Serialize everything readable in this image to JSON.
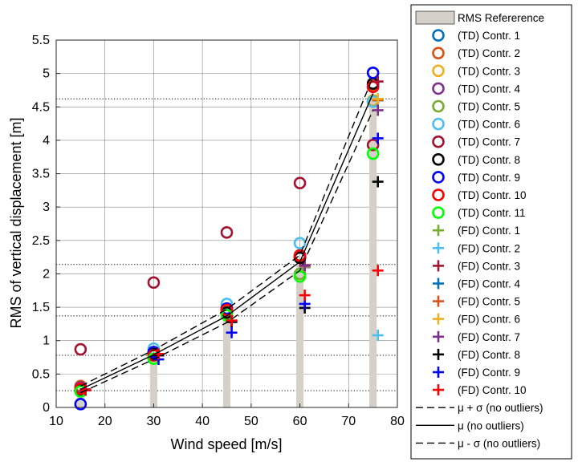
{
  "chart_data": {
    "type": "scatter",
    "xlabel": "Wind speed [m/s]",
    "ylabel": "RMS of vertical displacement [m]",
    "xlim": [
      10,
      80
    ],
    "ylim": [
      0,
      5.5
    ],
    "x_ticks": [
      "10",
      "20",
      "30",
      "40",
      "50",
      "60",
      "70",
      "80"
    ],
    "y_ticks": [
      "0",
      "0.5",
      "1",
      "1.5",
      "2",
      "2.5",
      "3",
      "3.5",
      "4",
      "4.5",
      "5",
      "5.5"
    ],
    "grid": true,
    "legend_position": "outside-right",
    "x": [
      15,
      30,
      45,
      60,
      75
    ],
    "reference": {
      "name": "RMS Refererence",
      "color": "#d6d1c8",
      "values": [
        0.25,
        0.78,
        1.37,
        2.14,
        4.62
      ]
    },
    "lines": [
      {
        "name": "μ + σ  (no outliers)",
        "style": "dashed",
        "values": [
          0.32,
          0.86,
          1.47,
          2.28,
          4.95
        ]
      },
      {
        "name": "μ (no outliers)",
        "style": "solid",
        "values": [
          0.27,
          0.79,
          1.37,
          2.18,
          4.7
        ]
      },
      {
        "name": "μ - σ  (no outliers)",
        "style": "dashed",
        "values": [
          0.22,
          0.72,
          1.27,
          2.05,
          4.45
        ]
      }
    ],
    "series": [
      {
        "name": "(TD) Contr. 1",
        "marker": "circle",
        "color": "#0072bd",
        "x": [
          15,
          30,
          45,
          60,
          75
        ],
        "values": [
          0.28,
          0.82,
          1.48,
          2.25,
          4.8
        ]
      },
      {
        "name": "(TD) Contr. 2",
        "marker": "circle",
        "color": "#d95319",
        "x": [
          15,
          30,
          45,
          60,
          75
        ],
        "values": [
          0.32,
          0.8,
          1.45,
          2.28,
          4.82
        ]
      },
      {
        "name": "(TD) Contr. 3",
        "marker": "circle",
        "color": "#edb120",
        "x": [
          15,
          30,
          45,
          60,
          75
        ],
        "values": [
          0.27,
          0.8,
          1.44,
          2.25,
          4.6
        ]
      },
      {
        "name": "(TD) Contr. 4",
        "marker": "circle",
        "color": "#7e2f8e",
        "x": [
          15,
          30,
          45,
          60,
          75
        ],
        "values": [
          0.3,
          0.8,
          1.48,
          2.26,
          4.58
        ]
      },
      {
        "name": "(TD) Contr. 5",
        "marker": "circle",
        "color": "#77ac30",
        "x": [
          15,
          30,
          45,
          60,
          75
        ],
        "values": [
          0.25,
          0.78,
          1.4,
          2.0,
          4.58
        ]
      },
      {
        "name": "(TD) Contr. 6",
        "marker": "circle",
        "color": "#4dbeee",
        "x": [
          15,
          30,
          45,
          60,
          75
        ],
        "values": [
          0.27,
          0.88,
          1.55,
          2.46,
          4.58
        ]
      },
      {
        "name": "(TD) Contr. 7",
        "marker": "circle",
        "color": "#a2142f",
        "x": [
          15,
          30,
          45,
          60,
          75
        ],
        "values": [
          0.87,
          1.87,
          2.62,
          3.36,
          3.93
        ]
      },
      {
        "name": "(TD) Contr. 8",
        "marker": "circle",
        "color": "#000000",
        "x": [
          15,
          30,
          45,
          60,
          75
        ],
        "values": [
          0.25,
          0.8,
          1.42,
          2.24,
          4.85
        ]
      },
      {
        "name": "(TD) Contr. 9",
        "marker": "circle",
        "color": "#0000ff",
        "x": [
          15,
          30,
          45,
          60,
          75
        ],
        "values": [
          0.05,
          0.83,
          1.48,
          2.27,
          5.01
        ]
      },
      {
        "name": "(TD) Contr. 10",
        "marker": "circle",
        "color": "#ff0000",
        "x": [
          15,
          30,
          45,
          60,
          75
        ],
        "values": [
          0.28,
          0.78,
          1.46,
          2.27,
          4.8
        ]
      },
      {
        "name": "(TD) Contr. 11",
        "marker": "circle",
        "color": "#00ff00",
        "x": [
          15,
          30,
          45,
          60,
          75
        ],
        "values": [
          0.24,
          0.73,
          1.38,
          1.96,
          3.8
        ]
      },
      {
        "name": "(FD) Contr. 1",
        "marker": "plus",
        "color": "#77ac30",
        "x": [
          16,
          31,
          46,
          61,
          76
        ],
        "values": [
          0.26,
          0.78,
          1.3,
          2.1,
          4.6
        ]
      },
      {
        "name": "(FD) Contr. 2",
        "marker": "plus",
        "color": "#4dbeee",
        "x": [
          16,
          31,
          46,
          61,
          76
        ],
        "values": [
          0.27,
          0.78,
          1.3,
          2.12,
          1.08
        ]
      },
      {
        "name": "(FD) Contr. 3",
        "marker": "plus",
        "color": "#a2142f",
        "x": [
          16,
          31,
          46,
          61,
          76
        ],
        "values": [
          0.27,
          0.8,
          1.3,
          2.13,
          4.88
        ]
      },
      {
        "name": "(FD) Contr. 4",
        "marker": "plus",
        "color": "#0072bd",
        "x": [
          16,
          31,
          46,
          61,
          76
        ],
        "values": [
          0.26,
          0.78,
          1.28,
          2.1,
          4.6
        ]
      },
      {
        "name": "(FD) Contr. 5",
        "marker": "plus",
        "color": "#d95319",
        "x": [
          16,
          31,
          46,
          61,
          76
        ],
        "values": [
          0.26,
          0.78,
          1.3,
          2.11,
          4.6
        ]
      },
      {
        "name": "(FD) Contr. 6",
        "marker": "plus",
        "color": "#edb120",
        "x": [
          16,
          31,
          46,
          61,
          76
        ],
        "values": [
          0.26,
          0.78,
          1.3,
          2.11,
          4.62
        ]
      },
      {
        "name": "(FD) Contr. 7",
        "marker": "plus",
        "color": "#7e2f8e",
        "x": [
          16,
          31,
          46,
          61,
          76
        ],
        "values": [
          0.26,
          0.78,
          1.3,
          2.12,
          4.45
        ]
      },
      {
        "name": "(FD) Contr. 8",
        "marker": "plus",
        "color": "#000000",
        "x": [
          16,
          31,
          46,
          61,
          76
        ],
        "values": [
          0.26,
          0.78,
          1.28,
          1.49,
          3.38
        ]
      },
      {
        "name": "(FD) Contr. 9",
        "marker": "plus",
        "color": "#0000ff",
        "x": [
          16,
          31,
          46,
          61,
          76
        ],
        "values": [
          0.26,
          0.72,
          1.12,
          1.55,
          4.03
        ]
      },
      {
        "name": "(FD) Contr. 10",
        "marker": "plus",
        "color": "#ff0000",
        "x": [
          16,
          31,
          46,
          61,
          76
        ],
        "values": [
          0.26,
          0.8,
          1.3,
          1.68,
          2.05
        ]
      }
    ]
  }
}
